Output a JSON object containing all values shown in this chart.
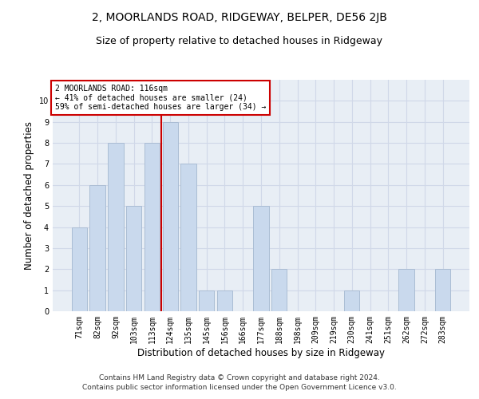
{
  "title": "2, MOORLANDS ROAD, RIDGEWAY, BELPER, DE56 2JB",
  "subtitle": "Size of property relative to detached houses in Ridgeway",
  "xlabel": "Distribution of detached houses by size in Ridgeway",
  "ylabel": "Number of detached properties",
  "categories": [
    "71sqm",
    "82sqm",
    "92sqm",
    "103sqm",
    "113sqm",
    "124sqm",
    "135sqm",
    "145sqm",
    "156sqm",
    "166sqm",
    "177sqm",
    "188sqm",
    "198sqm",
    "209sqm",
    "219sqm",
    "230sqm",
    "241sqm",
    "251sqm",
    "262sqm",
    "272sqm",
    "283sqm"
  ],
  "values": [
    4,
    6,
    8,
    5,
    8,
    9,
    7,
    1,
    1,
    0,
    5,
    2,
    0,
    0,
    0,
    1,
    0,
    0,
    2,
    0,
    2
  ],
  "bar_color": "#c9d9ed",
  "bar_edge_color": "#aabdd4",
  "vline_x": 4.5,
  "vline_color": "#cc0000",
  "annotation_text": "2 MOORLANDS ROAD: 116sqm\n← 41% of detached houses are smaller (24)\n59% of semi-detached houses are larger (34) →",
  "annotation_box_color": "#ffffff",
  "annotation_box_edge": "#cc0000",
  "ylim": [
    0,
    11
  ],
  "yticks": [
    0,
    1,
    2,
    3,
    4,
    5,
    6,
    7,
    8,
    9,
    10,
    11
  ],
  "grid_color": "#d0d8e8",
  "background_color": "#e8eef5",
  "footer": "Contains HM Land Registry data © Crown copyright and database right 2024.\nContains public sector information licensed under the Open Government Licence v3.0.",
  "title_fontsize": 10,
  "subtitle_fontsize": 9,
  "axis_label_fontsize": 8.5,
  "tick_fontsize": 7,
  "footer_fontsize": 6.5
}
